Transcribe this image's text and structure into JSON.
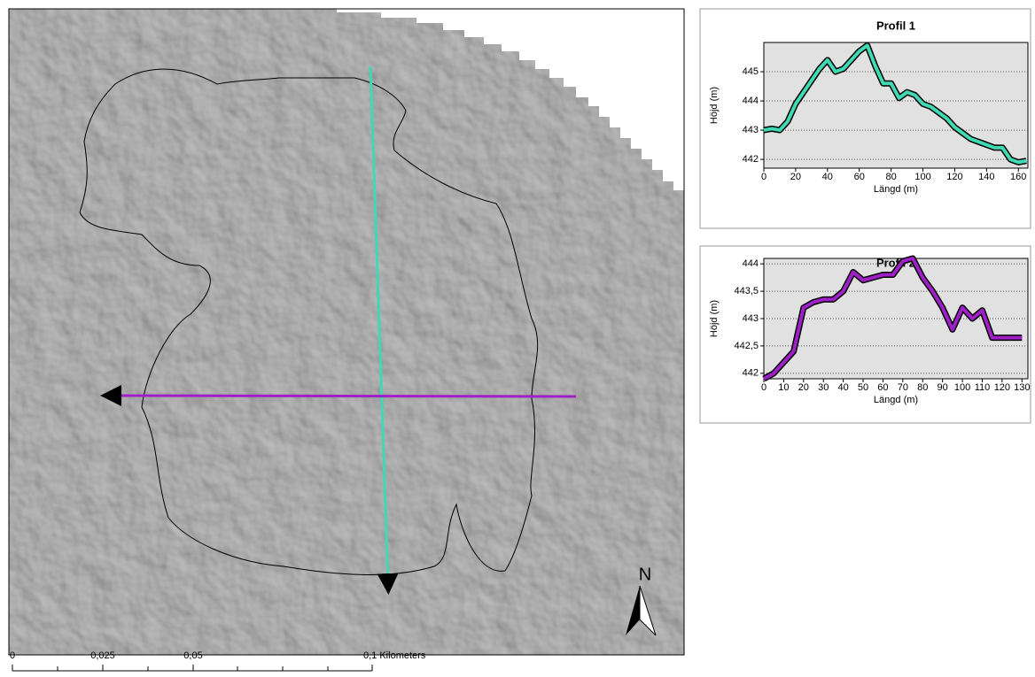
{
  "map": {
    "north_label": "N",
    "scale_labels": [
      "0",
      "0,025",
      "0,05",
      "0,1 Kilometers"
    ]
  },
  "chart_data": [
    {
      "type": "line",
      "title": "Profil 1",
      "xlabel": "Längd (m)",
      "ylabel": "Höjd (m)",
      "grid": true,
      "xlim": [
        0,
        166
      ],
      "xticks": [
        0,
        20,
        40,
        60,
        80,
        100,
        120,
        140,
        160
      ],
      "ylim": [
        441.7,
        446
      ],
      "yticks": [
        442,
        443,
        444,
        445
      ],
      "x": [
        0,
        5,
        10,
        15,
        20,
        25,
        30,
        35,
        40,
        45,
        50,
        55,
        60,
        65,
        70,
        75,
        80,
        85,
        90,
        95,
        100,
        105,
        110,
        115,
        120,
        125,
        130,
        135,
        140,
        145,
        150,
        155,
        160,
        165
      ],
      "series": [
        {
          "color": "#3fd9b4",
          "values": [
            443.0,
            443.05,
            443.0,
            443.3,
            443.9,
            444.3,
            444.7,
            445.1,
            445.4,
            445.0,
            445.1,
            445.4,
            445.7,
            445.9,
            445.2,
            444.6,
            444.6,
            444.1,
            444.3,
            444.2,
            443.9,
            443.8,
            443.6,
            443.4,
            443.1,
            442.9,
            442.7,
            442.6,
            442.5,
            442.4,
            442.4,
            442.0,
            441.9,
            441.95
          ]
        }
      ]
    },
    {
      "type": "line",
      "title": "Profil 2",
      "xlabel": "Längd (m)",
      "ylabel": "Höjd (m)",
      "grid": true,
      "xlim": [
        0,
        133
      ],
      "xticks": [
        0,
        10,
        20,
        30,
        40,
        50,
        60,
        70,
        80,
        90,
        100,
        110,
        120,
        130
      ],
      "ylim": [
        441.9,
        444.1
      ],
      "yticks": [
        442,
        {
          "value": 442.5,
          "label": "442,5"
        },
        443,
        {
          "value": 443.5,
          "label": "443,5"
        },
        444
      ],
      "x": [
        0,
        5,
        10,
        15,
        20,
        25,
        30,
        35,
        40,
        45,
        50,
        55,
        60,
        65,
        70,
        75,
        80,
        85,
        90,
        95,
        100,
        105,
        110,
        115,
        120,
        125,
        130
      ],
      "series": [
        {
          "color": "#a020c8",
          "values": [
            441.9,
            442.0,
            442.2,
            442.4,
            443.2,
            443.3,
            443.35,
            443.35,
            443.5,
            443.85,
            443.7,
            443.75,
            443.8,
            443.8,
            444.05,
            444.1,
            443.75,
            443.5,
            443.2,
            442.8,
            443.2,
            443.0,
            443.15,
            442.65,
            442.65,
            442.65,
            442.65
          ]
        }
      ]
    }
  ]
}
